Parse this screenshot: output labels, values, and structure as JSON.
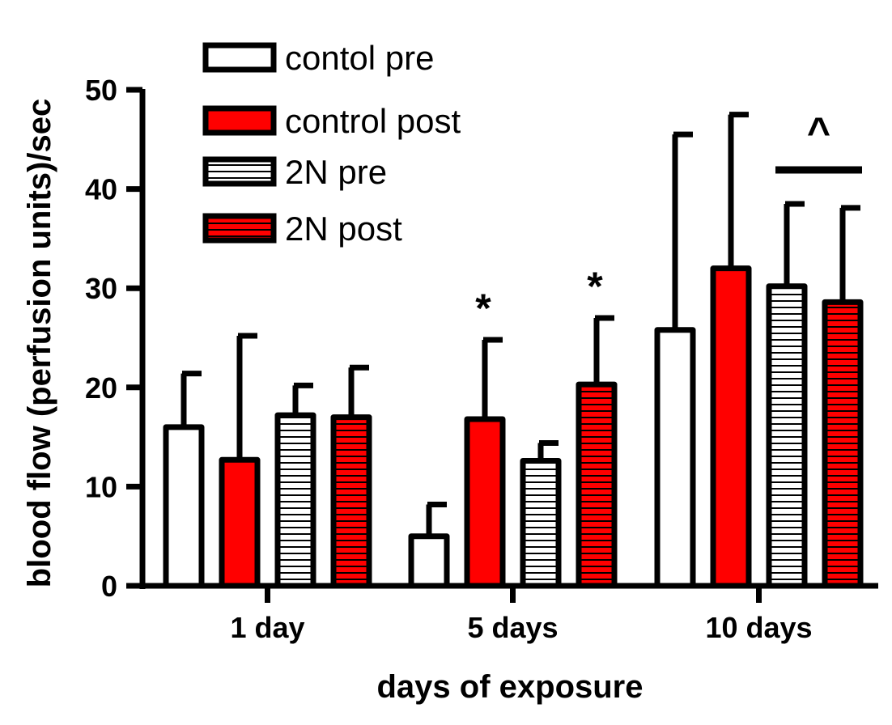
{
  "chart_data": {
    "type": "bar",
    "title": "",
    "xlabel": "days of exposure",
    "ylabel": "blood flow (perfusion units)/sec",
    "ylim": [
      0,
      50
    ],
    "yticks": [
      0,
      10,
      20,
      30,
      40,
      50
    ],
    "categories": [
      "1 day",
      "5 days",
      "10 days"
    ],
    "series": [
      {
        "name": "contol pre",
        "values": [
          16,
          5,
          25.8
        ],
        "errors": [
          5.4,
          3.2,
          19.7
        ],
        "fill": "#ffffff",
        "pattern": "none"
      },
      {
        "name": "control post",
        "values": [
          12.7,
          16.8,
          32
        ],
        "errors": [
          12.5,
          8,
          15.5
        ],
        "fill": "#ff0000",
        "pattern": "none"
      },
      {
        "name": "2N pre",
        "values": [
          17.2,
          12.6,
          30.2
        ],
        "errors": [
          3,
          1.8,
          8.3
        ],
        "fill": "#ffffff",
        "pattern": "horizontal-stripes"
      },
      {
        "name": "2N post",
        "values": [
          17,
          20.3,
          28.6
        ],
        "errors": [
          5,
          6.7,
          9.5
        ],
        "fill": "#ff0000",
        "pattern": "horizontal-stripes"
      }
    ],
    "legend_position": "top-left",
    "annotations": [
      {
        "text": "*",
        "category": "5 days",
        "series": "control post"
      },
      {
        "text": "*",
        "category": "5 days",
        "series": "2N post"
      },
      {
        "text": "^",
        "category": "10 days",
        "series": [
          "2N pre",
          "2N post"
        ]
      }
    ],
    "colors": {
      "axis": "#000000",
      "red": "#ff0000",
      "white": "#ffffff",
      "stripe": "#000000"
    }
  }
}
